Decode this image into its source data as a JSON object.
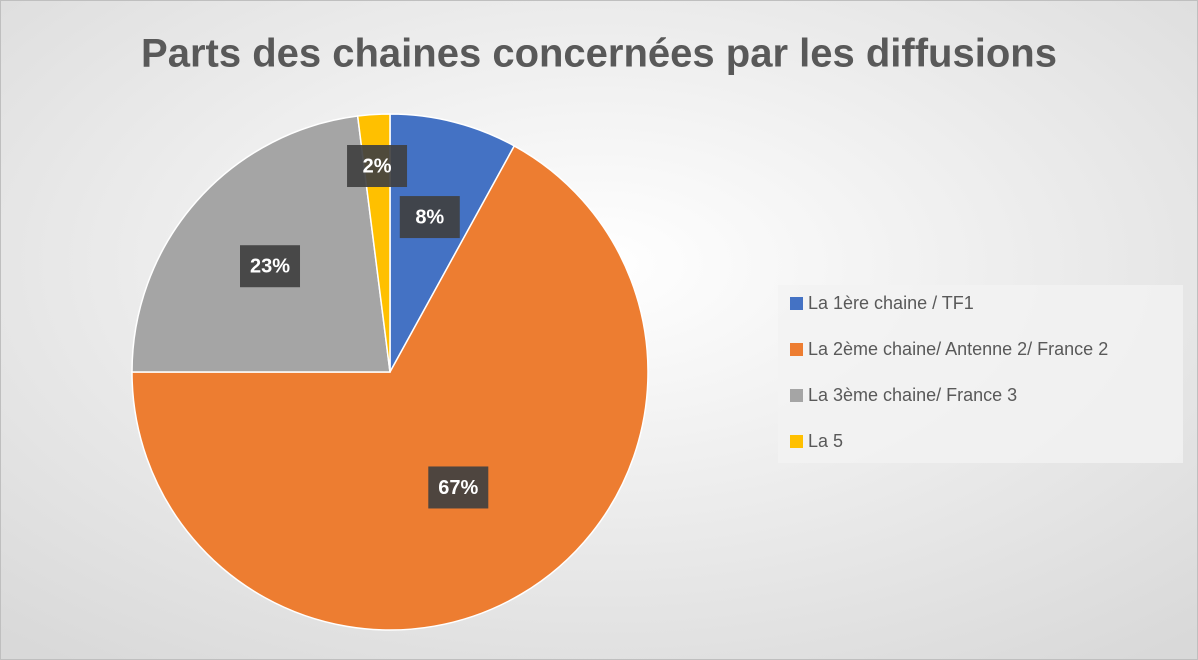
{
  "chart_data": {
    "type": "pie",
    "title": "Parts des chaines concernées par les diffusions",
    "categories": [
      "La 1ère chaine / TF1",
      "La 2ème chaine/ Antenne 2/ France 2",
      "La 3ème chaine/ France 3",
      "La 5"
    ],
    "values": [
      8,
      67,
      23,
      2
    ],
    "value_labels": [
      "8%",
      "67%",
      "23%",
      "2%"
    ],
    "colors": [
      "#4472c4",
      "#ed7d31",
      "#a5a5a5",
      "#ffc000"
    ],
    "legend": "right"
  }
}
